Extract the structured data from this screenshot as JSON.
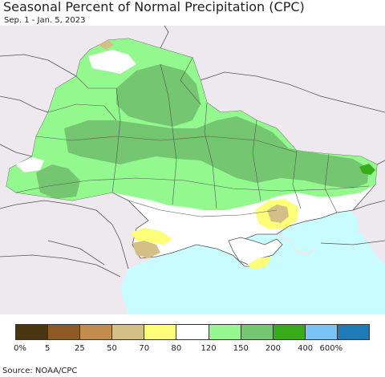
{
  "title": "Seasonal Percent of Normal Precipitation (CPC)",
  "subtitle": "Sep. 1 - Jan. 5, 2023",
  "source": "Source: NOAA/CPC",
  "colors": {
    "outside": "#ede9ee",
    "sea": "#c8fcfe",
    "border": "#555555"
  },
  "legend": {
    "colors": [
      "#4a3511",
      "#8d5a23",
      "#c28d4b",
      "#d4bf87",
      "#fefe78",
      "#ffffff",
      "#93f98e",
      "#74c770",
      "#35ac18",
      "#79c4f6",
      "#1d7bba"
    ],
    "ticks": [
      "0%",
      "5",
      "25",
      "50",
      "70",
      "80",
      "120",
      "150",
      "200",
      "400",
      "600%"
    ]
  }
}
